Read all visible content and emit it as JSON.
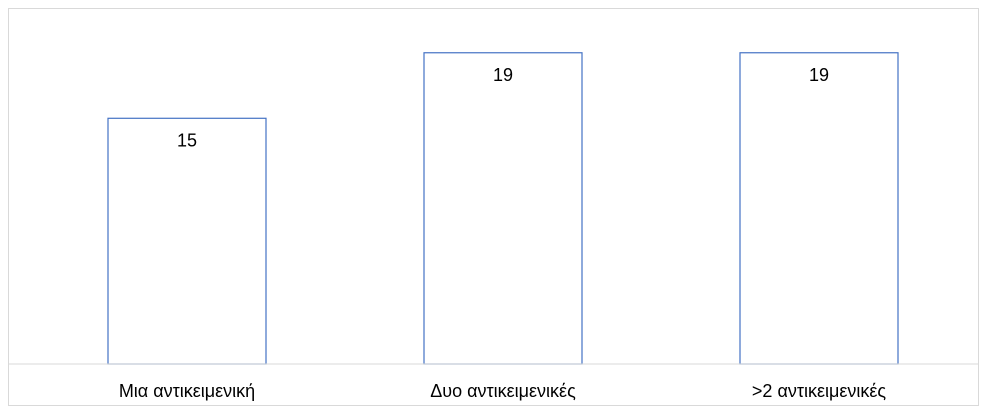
{
  "chart_data": {
    "type": "bar",
    "categories": [
      "Μια αντικειμενική",
      "Δυο αντικειμενικές",
      ">2 αντικειμενικές"
    ],
    "values": [
      15,
      19,
      19
    ],
    "ylim": [
      0,
      21
    ],
    "grid": false,
    "legend": "none",
    "bar_fill": "#ffffff",
    "bar_stroke": "#4472c4",
    "frame_color": "#d9d9d9"
  }
}
